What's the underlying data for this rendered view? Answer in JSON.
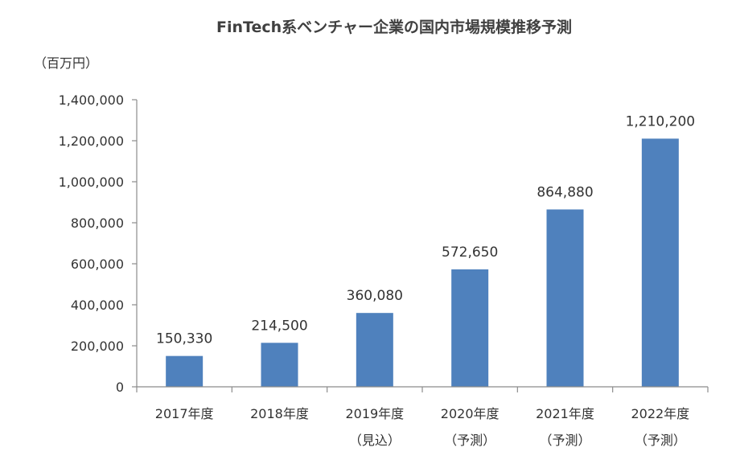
{
  "chart_data": {
    "type": "bar",
    "title": "FinTech系ベンチャー企業の国内市場規模推移予測",
    "unit_label": "（百万円）",
    "categories": [
      {
        "label": "2017年度",
        "sub": ""
      },
      {
        "label": "2018年度",
        "sub": ""
      },
      {
        "label": "2019年度",
        "sub": "（見込）"
      },
      {
        "label": "2020年度",
        "sub": "（予測）"
      },
      {
        "label": "2021年度",
        "sub": "（予測）"
      },
      {
        "label": "2022年度",
        "sub": "（予測）"
      }
    ],
    "values": [
      150330,
      214500,
      360080,
      572650,
      864880,
      1210200
    ],
    "value_labels": [
      "150,330",
      "214,500",
      "360,080",
      "572,650",
      "864,880",
      "1,210,200"
    ],
    "ylim": [
      0,
      1400000
    ],
    "yticks": [
      {
        "value": 0,
        "label": "0"
      },
      {
        "value": 200000,
        "label": "200,000"
      },
      {
        "value": 400000,
        "label": "400,000"
      },
      {
        "value": 600000,
        "label": "600,000"
      },
      {
        "value": 800000,
        "label": "800,000"
      },
      {
        "value": 1000000,
        "label": "1,000,000"
      },
      {
        "value": 1200000,
        "label": "1,200,000"
      },
      {
        "value": 1400000,
        "label": "1,400,000"
      }
    ],
    "grid": false,
    "legend": "none",
    "bar_color": "#4f81bd"
  }
}
